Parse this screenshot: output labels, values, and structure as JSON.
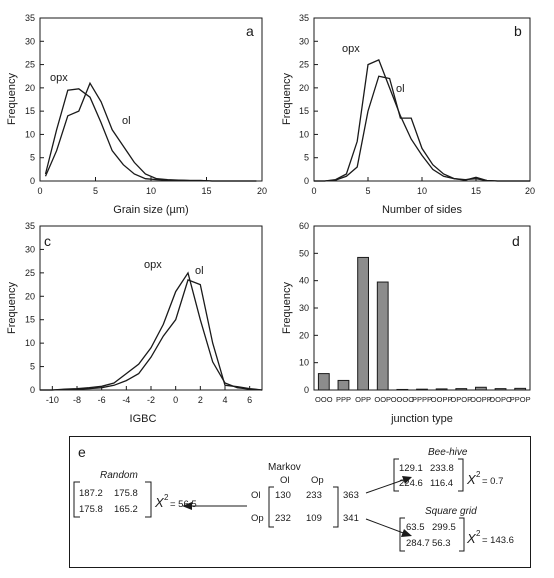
{
  "chart_data": [
    {
      "panel": "a",
      "type": "line",
      "xlabel": "Grain size (µm)",
      "ylabel": "Frequency",
      "xlim": [
        0,
        20
      ],
      "ylim": [
        0,
        35
      ],
      "xticks": [
        0,
        5,
        10,
        15,
        20
      ],
      "yticks": [
        0,
        5,
        10,
        15,
        20,
        25,
        30,
        35
      ],
      "series": [
        {
          "name": "opx",
          "x": [
            0.5,
            1.5,
            2.5,
            3.5,
            4.5,
            5.5,
            6.5,
            7.5,
            8.5,
            9.5,
            10.5,
            11.5,
            12.5,
            13.5,
            14.5,
            15.5,
            16.5,
            17.5,
            18.5,
            19.5
          ],
          "y": [
            1.5,
            11,
            19.5,
            19.8,
            18,
            12.5,
            6.5,
            3.5,
            1.5,
            0.5,
            0.3,
            0.2,
            0.2,
            0.1,
            0.1,
            0,
            0,
            0,
            0,
            0
          ]
        },
        {
          "name": "ol",
          "x": [
            0.5,
            1.5,
            2.5,
            3.5,
            4.5,
            5.5,
            6.5,
            7.5,
            8.5,
            9.5,
            10.5,
            11.5,
            12.5,
            13.5,
            14.5,
            15.5,
            16.5,
            17.5,
            18.5,
            19.5
          ],
          "y": [
            1,
            6.5,
            14,
            15,
            21,
            17,
            11,
            7.5,
            4,
            1.5,
            0.5,
            0.3,
            0.2,
            0.1,
            0.1,
            0,
            0,
            0,
            0,
            0
          ]
        }
      ]
    },
    {
      "panel": "b",
      "type": "line",
      "xlabel": "Number of sides",
      "ylabel": "Frequency",
      "xlim": [
        0,
        20
      ],
      "ylim": [
        0,
        35
      ],
      "xticks": [
        0,
        5,
        10,
        15,
        20
      ],
      "yticks": [
        0,
        5,
        10,
        15,
        20,
        25,
        30,
        35
      ],
      "series": [
        {
          "name": "opx",
          "x": [
            0,
            1,
            2,
            3,
            4,
            5,
            6,
            7,
            8,
            9,
            10,
            11,
            12,
            13,
            14,
            15,
            16,
            17,
            18,
            19,
            20
          ],
          "y": [
            0,
            0,
            0.3,
            1.5,
            8.5,
            25,
            26,
            20,
            14,
            9,
            5.5,
            2.5,
            1,
            0.5,
            0.2,
            0.8,
            0.1,
            0,
            0,
            0,
            0
          ]
        },
        {
          "name": "ol",
          "x": [
            0,
            1,
            2,
            3,
            4,
            5,
            6,
            7,
            8,
            9,
            10,
            11,
            12,
            13,
            14,
            15,
            16,
            17,
            18,
            19,
            20
          ],
          "y": [
            0,
            0,
            0.2,
            1,
            3,
            15,
            22.5,
            22,
            13.5,
            13.5,
            7,
            3.5,
            1.5,
            0.5,
            0.3,
            0.5,
            0.1,
            0,
            0,
            0,
            0
          ]
        }
      ]
    },
    {
      "panel": "c",
      "type": "line",
      "xlabel": "IGBC",
      "ylabel": "Frequency",
      "xlim": [
        -11,
        7
      ],
      "ylim": [
        0,
        35
      ],
      "xticks": [
        -10,
        -8,
        -6,
        -4,
        -2,
        0,
        2,
        4,
        6
      ],
      "yticks": [
        0,
        5,
        10,
        15,
        20,
        25,
        30,
        35
      ],
      "series": [
        {
          "name": "opx",
          "x": [
            -11,
            -10,
            -9,
            -8,
            -7,
            -6,
            -5,
            -4,
            -3,
            -2,
            -1,
            0,
            1,
            2,
            3,
            4,
            5,
            6,
            7
          ],
          "y": [
            0,
            0,
            0.2,
            0.3,
            0.5,
            0.8,
            1.5,
            3.5,
            5.5,
            9,
            14,
            21,
            25,
            15,
            6,
            1.5,
            0.5,
            0.2,
            0
          ]
        },
        {
          "name": "ol",
          "x": [
            -11,
            -10,
            -9,
            -8,
            -7,
            -6,
            -5,
            -4,
            -3,
            -2,
            -1,
            0,
            1,
            2,
            3,
            4,
            5,
            6,
            7
          ],
          "y": [
            0,
            0,
            0.1,
            0.2,
            0.3,
            0.5,
            1,
            2,
            3.5,
            7,
            11.5,
            15,
            23.5,
            22.5,
            10,
            1,
            0.7,
            0.3,
            0
          ]
        }
      ]
    },
    {
      "panel": "d",
      "type": "bar",
      "xlabel": "junction type",
      "ylabel": "Frequency",
      "ylim": [
        0,
        60
      ],
      "yticks": [
        0,
        10,
        20,
        30,
        40,
        50,
        60
      ],
      "categories": [
        "OOO",
        "PPP",
        "OPP",
        "OOP",
        "OOOO",
        "PPPP",
        "OOPP",
        "OPOP",
        "OOPP",
        "OOPO",
        "PPOP"
      ],
      "values": [
        6,
        3.5,
        48.5,
        39.5,
        0.2,
        0.3,
        0.4,
        0.5,
        1,
        0.5,
        0.6
      ]
    }
  ],
  "panels": {
    "a": "a",
    "b": "b",
    "c": "c",
    "d": "d",
    "e": "e"
  },
  "panel_e": {
    "random": {
      "title": "Random",
      "m11": "187.2",
      "m12": "175.8",
      "m21": "175.8",
      "m22": "165.2",
      "chi": "X",
      "chi_sup": "2",
      "chi_val": "= 56.5"
    },
    "markov": {
      "title": "Markov",
      "col1": "Ol",
      "col2": "Op",
      "row1": "Ol",
      "row2": "Op",
      "m11": "130",
      "m12": "233",
      "m21": "232",
      "m22": "109",
      "sum1": "363",
      "sum2": "341"
    },
    "beehive": {
      "title": "Bee-hive",
      "m11": "129.1",
      "m12": "233.8",
      "m21": "224.6",
      "m22": "116.4",
      "chi": "X",
      "chi_sup": "2",
      "chi_val": "= 0.7"
    },
    "square": {
      "title": "Square grid",
      "m11": "63.5",
      "m12": "299.5",
      "m21": "284.7",
      "m22": "56.3",
      "chi": "X",
      "chi_sup": "2",
      "chi_val": "= 143.6"
    }
  }
}
